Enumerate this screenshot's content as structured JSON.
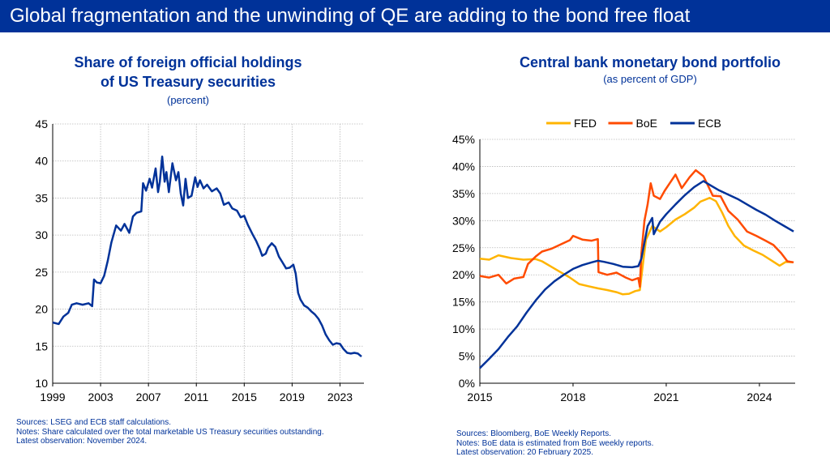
{
  "banner": "Global fragmentation and the unwinding of QE are adding to the bond free float",
  "left": {
    "title_line1": "Share of foreign official holdings",
    "title_line2": "of US Treasury securities",
    "subtitle": "(percent)",
    "notes": [
      "Sources: LSEG and ECB staff calculations.",
      "Notes: Share calculated over the total marketable US Treasury securities outstanding.",
      "Latest observation: November 2024."
    ]
  },
  "right": {
    "title": "Central bank monetary bond portfolio",
    "subtitle": "(as percent of GDP)",
    "notes": [
      "Sources: Bloomberg, BoE Weekly Reports.",
      "Notes: BoE data is estimated from BoE weekly reports.",
      "Latest observation: 20 February 2025."
    ]
  },
  "colors": {
    "navy": "#003299",
    "fed": "#FFB400",
    "boe": "#FF4B00"
  },
  "chart_data": [
    {
      "type": "line",
      "title": "Share of foreign official holdings of US Treasury securities",
      "subtitle": "(percent)",
      "xlim": [
        1999,
        2025
      ],
      "ylim": [
        10,
        45
      ],
      "x_ticks": [
        "1999",
        "2003",
        "2007",
        "2011",
        "2015",
        "2019",
        "2023"
      ],
      "y_ticks": [
        "10",
        "15",
        "20",
        "25",
        "30",
        "35",
        "40",
        "45"
      ],
      "grid": true,
      "series": [
        {
          "color": "#003299",
          "points": [
            [
              1999.0,
              18.2
            ],
            [
              1999.5,
              18.0
            ],
            [
              1999.9,
              19.0
            ],
            [
              2000.3,
              19.5
            ],
            [
              2000.6,
              20.6
            ],
            [
              2001.0,
              20.8
            ],
            [
              2001.5,
              20.6
            ],
            [
              2002.0,
              20.8
            ],
            [
              2002.3,
              20.4
            ],
            [
              2002.45,
              24.0
            ],
            [
              2002.7,
              23.6
            ],
            [
              2003.0,
              23.5
            ],
            [
              2003.3,
              24.5
            ],
            [
              2003.6,
              26.5
            ],
            [
              2003.9,
              29.0
            ],
            [
              2004.3,
              31.3
            ],
            [
              2004.7,
              30.6
            ],
            [
              2005.0,
              31.5
            ],
            [
              2005.4,
              30.3
            ],
            [
              2005.7,
              32.5
            ],
            [
              2006.0,
              33.0
            ],
            [
              2006.4,
              33.2
            ],
            [
              2006.55,
              37.0
            ],
            [
              2006.8,
              36.0
            ],
            [
              2007.1,
              37.6
            ],
            [
              2007.3,
              36.4
            ],
            [
              2007.6,
              39.0
            ],
            [
              2007.8,
              35.8
            ],
            [
              2007.95,
              37.2
            ],
            [
              2008.15,
              40.6
            ],
            [
              2008.35,
              37.2
            ],
            [
              2008.5,
              38.5
            ],
            [
              2008.7,
              35.8
            ],
            [
              2009.0,
              39.7
            ],
            [
              2009.3,
              37.4
            ],
            [
              2009.5,
              38.5
            ],
            [
              2009.7,
              35.6
            ],
            [
              2009.9,
              34.0
            ],
            [
              2010.1,
              37.6
            ],
            [
              2010.3,
              35.0
            ],
            [
              2010.6,
              35.3
            ],
            [
              2010.9,
              37.8
            ],
            [
              2011.1,
              36.5
            ],
            [
              2011.3,
              37.4
            ],
            [
              2011.6,
              36.3
            ],
            [
              2011.9,
              36.8
            ],
            [
              2012.3,
              35.9
            ],
            [
              2012.7,
              36.3
            ],
            [
              2013.0,
              35.6
            ],
            [
              2013.3,
              34.1
            ],
            [
              2013.7,
              34.4
            ],
            [
              2014.0,
              33.6
            ],
            [
              2014.4,
              33.3
            ],
            [
              2014.7,
              32.4
            ],
            [
              2015.0,
              32.6
            ],
            [
              2015.3,
              31.4
            ],
            [
              2015.7,
              30.1
            ],
            [
              2016.0,
              29.2
            ],
            [
              2016.3,
              28.1
            ],
            [
              2016.5,
              27.2
            ],
            [
              2016.8,
              27.5
            ],
            [
              2017.0,
              28.3
            ],
            [
              2017.3,
              28.9
            ],
            [
              2017.6,
              28.4
            ],
            [
              2017.9,
              27.1
            ],
            [
              2018.2,
              26.3
            ],
            [
              2018.5,
              25.5
            ],
            [
              2018.8,
              25.6
            ],
            [
              2019.1,
              26.0
            ],
            [
              2019.3,
              24.8
            ],
            [
              2019.5,
              22.2
            ],
            [
              2019.7,
              21.3
            ],
            [
              2020.0,
              20.5
            ],
            [
              2020.3,
              20.2
            ],
            [
              2020.6,
              19.7
            ],
            [
              2020.9,
              19.3
            ],
            [
              2021.2,
              18.7
            ],
            [
              2021.5,
              17.8
            ],
            [
              2021.8,
              16.6
            ],
            [
              2022.1,
              15.8
            ],
            [
              2022.4,
              15.2
            ],
            [
              2022.7,
              15.4
            ],
            [
              2023.0,
              15.3
            ],
            [
              2023.3,
              14.6
            ],
            [
              2023.6,
              14.1
            ],
            [
              2023.9,
              14.0
            ],
            [
              2024.2,
              14.1
            ],
            [
              2024.5,
              14.0
            ],
            [
              2024.8,
              13.6
            ]
          ]
        }
      ]
    },
    {
      "type": "line",
      "title": "Central bank monetary bond portfolio",
      "subtitle": "(as percent of GDP)",
      "xlim": [
        2015,
        2025.15
      ],
      "ylim": [
        0,
        45
      ],
      "x_ticks": [
        "2015",
        "2018",
        "2021",
        "2024"
      ],
      "y_ticks": [
        "0%",
        "5%",
        "10%",
        "15%",
        "20%",
        "25%",
        "30%",
        "35%",
        "40%",
        "45%"
      ],
      "grid": true,
      "legend": "top",
      "series": [
        {
          "name": "FED",
          "color": "#FFB400",
          "points": [
            [
              2015.0,
              23.0
            ],
            [
              2015.3,
              22.8
            ],
            [
              2015.6,
              23.6
            ],
            [
              2016.0,
              23.1
            ],
            [
              2016.4,
              22.8
            ],
            [
              2016.8,
              22.9
            ],
            [
              2017.0,
              22.5
            ],
            [
              2017.3,
              21.5
            ],
            [
              2017.6,
              20.5
            ],
            [
              2017.9,
              19.5
            ],
            [
              2018.2,
              18.3
            ],
            [
              2018.5,
              17.9
            ],
            [
              2018.8,
              17.5
            ],
            [
              2019.1,
              17.2
            ],
            [
              2019.4,
              16.8
            ],
            [
              2019.6,
              16.4
            ],
            [
              2019.8,
              16.5
            ],
            [
              2020.0,
              17.0
            ],
            [
              2020.15,
              17.2
            ],
            [
              2020.25,
              22.0
            ],
            [
              2020.35,
              26.5
            ],
            [
              2020.55,
              29.0
            ],
            [
              2020.8,
              28.0
            ],
            [
              2021.0,
              28.8
            ],
            [
              2021.3,
              30.2
            ],
            [
              2021.6,
              31.2
            ],
            [
              2021.9,
              32.4
            ],
            [
              2022.1,
              33.5
            ],
            [
              2022.4,
              34.2
            ],
            [
              2022.6,
              33.6
            ],
            [
              2022.8,
              31.5
            ],
            [
              2023.0,
              29.0
            ],
            [
              2023.2,
              27.2
            ],
            [
              2023.5,
              25.4
            ],
            [
              2023.8,
              24.5
            ],
            [
              2024.1,
              23.7
            ],
            [
              2024.4,
              22.6
            ],
            [
              2024.65,
              21.7
            ],
            [
              2024.85,
              22.4
            ],
            [
              2025.1,
              22.3
            ]
          ]
        },
        {
          "name": "BoE",
          "color": "#FF4B00",
          "points": [
            [
              2015.0,
              19.8
            ],
            [
              2015.3,
              19.5
            ],
            [
              2015.6,
              20.0
            ],
            [
              2015.85,
              18.4
            ],
            [
              2016.1,
              19.3
            ],
            [
              2016.4,
              19.6
            ],
            [
              2016.55,
              22.0
            ],
            [
              2016.8,
              23.4
            ],
            [
              2017.0,
              24.3
            ],
            [
              2017.3,
              24.8
            ],
            [
              2017.6,
              25.6
            ],
            [
              2017.9,
              26.4
            ],
            [
              2018.0,
              27.2
            ],
            [
              2018.3,
              26.5
            ],
            [
              2018.6,
              26.3
            ],
            [
              2018.8,
              26.6
            ],
            [
              2018.82,
              20.5
            ],
            [
              2019.1,
              20.0
            ],
            [
              2019.4,
              20.4
            ],
            [
              2019.7,
              19.5
            ],
            [
              2019.9,
              19.0
            ],
            [
              2020.1,
              19.4
            ],
            [
              2020.15,
              17.8
            ],
            [
              2020.2,
              24.0
            ],
            [
              2020.3,
              30.0
            ],
            [
              2020.4,
              33.0
            ],
            [
              2020.5,
              36.9
            ],
            [
              2020.6,
              34.6
            ],
            [
              2020.8,
              34.0
            ],
            [
              2020.95,
              35.5
            ],
            [
              2021.1,
              36.8
            ],
            [
              2021.3,
              38.5
            ],
            [
              2021.5,
              36.0
            ],
            [
              2021.75,
              38.0
            ],
            [
              2021.95,
              39.3
            ],
            [
              2022.2,
              38.2
            ],
            [
              2022.5,
              34.6
            ],
            [
              2022.75,
              34.5
            ],
            [
              2023.0,
              31.8
            ],
            [
              2023.3,
              30.2
            ],
            [
              2023.6,
              28.0
            ],
            [
              2023.9,
              27.2
            ],
            [
              2024.2,
              26.3
            ],
            [
              2024.45,
              25.5
            ],
            [
              2024.7,
              24.0
            ],
            [
              2024.9,
              22.5
            ],
            [
              2025.1,
              22.3
            ]
          ]
        },
        {
          "name": "ECB",
          "color": "#003299",
          "points": [
            [
              2015.0,
              2.8
            ],
            [
              2015.3,
              4.5
            ],
            [
              2015.6,
              6.3
            ],
            [
              2015.9,
              8.5
            ],
            [
              2016.2,
              10.5
            ],
            [
              2016.5,
              13.0
            ],
            [
              2016.8,
              15.3
            ],
            [
              2017.1,
              17.3
            ],
            [
              2017.4,
              18.8
            ],
            [
              2017.7,
              20.0
            ],
            [
              2018.0,
              21.1
            ],
            [
              2018.3,
              21.8
            ],
            [
              2018.6,
              22.3
            ],
            [
              2018.8,
              22.6
            ],
            [
              2019.0,
              22.4
            ],
            [
              2019.3,
              22.0
            ],
            [
              2019.6,
              21.5
            ],
            [
              2019.9,
              21.4
            ],
            [
              2020.1,
              21.6
            ],
            [
              2020.2,
              23.0
            ],
            [
              2020.4,
              29.0
            ],
            [
              2020.55,
              30.5
            ],
            [
              2020.6,
              27.5
            ],
            [
              2020.8,
              29.8
            ],
            [
              2021.0,
              31.2
            ],
            [
              2021.3,
              33.0
            ],
            [
              2021.6,
              34.7
            ],
            [
              2021.9,
              36.2
            ],
            [
              2022.2,
              37.3
            ],
            [
              2022.4,
              36.6
            ],
            [
              2022.7,
              35.6
            ],
            [
              2023.0,
              34.8
            ],
            [
              2023.3,
              34.0
            ],
            [
              2023.6,
              33.0
            ],
            [
              2023.9,
              32.0
            ],
            [
              2024.2,
              31.1
            ],
            [
              2024.5,
              30.0
            ],
            [
              2024.8,
              29.0
            ],
            [
              2025.1,
              28.0
            ]
          ]
        }
      ]
    }
  ]
}
